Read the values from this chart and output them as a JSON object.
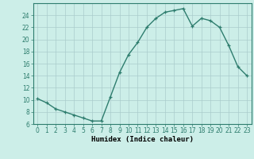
{
  "x": [
    0,
    1,
    2,
    3,
    4,
    5,
    6,
    7,
    8,
    9,
    10,
    11,
    12,
    13,
    14,
    15,
    16,
    17,
    18,
    19,
    20,
    21,
    22,
    23
  ],
  "y": [
    10.2,
    9.5,
    8.5,
    8.0,
    7.5,
    7.0,
    6.5,
    6.5,
    10.5,
    14.5,
    17.5,
    19.5,
    22.0,
    23.5,
    24.5,
    24.8,
    25.1,
    22.2,
    23.5,
    23.1,
    22.0,
    19.0,
    15.5,
    14.0
  ],
  "xlabel": "Humidex (Indice chaleur)",
  "xlim": [
    -0.5,
    23.5
  ],
  "ylim": [
    6,
    26
  ],
  "yticks": [
    6,
    8,
    10,
    12,
    14,
    16,
    18,
    20,
    22,
    24
  ],
  "xticks": [
    0,
    1,
    2,
    3,
    4,
    5,
    6,
    7,
    8,
    9,
    10,
    11,
    12,
    13,
    14,
    15,
    16,
    17,
    18,
    19,
    20,
    21,
    22,
    23
  ],
  "line_color": "#2e7d6e",
  "marker_color": "#2e7d6e",
  "bg_color": "#cceee8",
  "grid_color": "#aacccc",
  "fig_bg": "#cceee8"
}
